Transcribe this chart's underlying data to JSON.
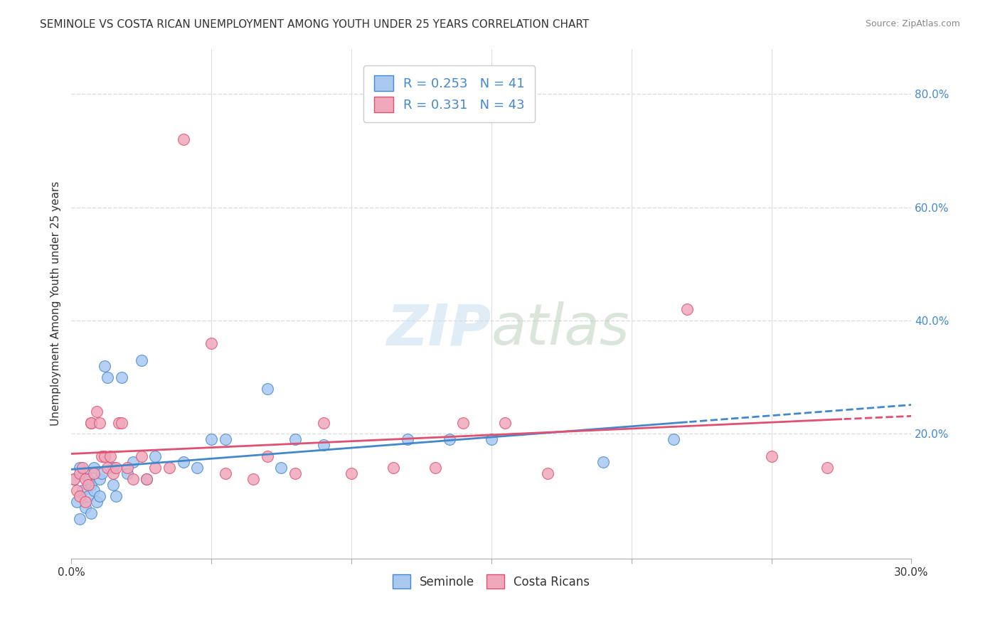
{
  "title": "SEMINOLE VS COSTA RICAN UNEMPLOYMENT AMONG YOUTH UNDER 25 YEARS CORRELATION CHART",
  "source": "Source: ZipAtlas.com",
  "ylabel": "Unemployment Among Youth under 25 years",
  "xlim": [
    0,
    0.3
  ],
  "ylim": [
    -0.02,
    0.88
  ],
  "right_yticks": [
    0.2,
    0.4,
    0.6,
    0.8
  ],
  "right_ytick_labels": [
    "20.0%",
    "40.0%",
    "60.0%",
    "80.0%"
  ],
  "seminole_R": 0.253,
  "seminole_N": 41,
  "costarican_R": 0.331,
  "costarican_N": 43,
  "seminole_color": "#a8c8f0",
  "costarican_color": "#f0a8bc",
  "trend_blue": "#4488cc",
  "trend_pink": "#e05070",
  "seminole_x": [
    0.001,
    0.002,
    0.003,
    0.003,
    0.004,
    0.005,
    0.005,
    0.006,
    0.006,
    0.007,
    0.007,
    0.008,
    0.008,
    0.009,
    0.01,
    0.01,
    0.011,
    0.012,
    0.013,
    0.015,
    0.015,
    0.016,
    0.018,
    0.02,
    0.022,
    0.025,
    0.027,
    0.03,
    0.04,
    0.045,
    0.05,
    0.055,
    0.07,
    0.075,
    0.08,
    0.09,
    0.12,
    0.135,
    0.15,
    0.19,
    0.215
  ],
  "seminole_y": [
    0.12,
    0.08,
    0.14,
    0.05,
    0.1,
    0.13,
    0.07,
    0.09,
    0.12,
    0.11,
    0.06,
    0.1,
    0.14,
    0.08,
    0.12,
    0.09,
    0.13,
    0.32,
    0.3,
    0.14,
    0.11,
    0.09,
    0.3,
    0.13,
    0.15,
    0.33,
    0.12,
    0.16,
    0.15,
    0.14,
    0.19,
    0.19,
    0.28,
    0.14,
    0.19,
    0.18,
    0.19,
    0.19,
    0.19,
    0.15,
    0.19
  ],
  "costarican_x": [
    0.001,
    0.002,
    0.003,
    0.003,
    0.004,
    0.005,
    0.005,
    0.006,
    0.007,
    0.007,
    0.008,
    0.009,
    0.01,
    0.011,
    0.012,
    0.013,
    0.014,
    0.015,
    0.016,
    0.017,
    0.018,
    0.02,
    0.022,
    0.025,
    0.027,
    0.03,
    0.035,
    0.04,
    0.05,
    0.055,
    0.065,
    0.07,
    0.08,
    0.09,
    0.1,
    0.115,
    0.13,
    0.14,
    0.155,
    0.17,
    0.22,
    0.25,
    0.27
  ],
  "costarican_y": [
    0.12,
    0.1,
    0.13,
    0.09,
    0.14,
    0.12,
    0.08,
    0.11,
    0.22,
    0.22,
    0.13,
    0.24,
    0.22,
    0.16,
    0.16,
    0.14,
    0.16,
    0.13,
    0.14,
    0.22,
    0.22,
    0.14,
    0.12,
    0.16,
    0.12,
    0.14,
    0.14,
    0.72,
    0.36,
    0.13,
    0.12,
    0.16,
    0.13,
    0.22,
    0.13,
    0.14,
    0.14,
    0.22,
    0.22,
    0.13,
    0.42,
    0.16,
    0.14
  ],
  "watermark_zip": "ZIP",
  "watermark_atlas": "atlas",
  "background_color": "#ffffff",
  "grid_color": "#dddddd"
}
